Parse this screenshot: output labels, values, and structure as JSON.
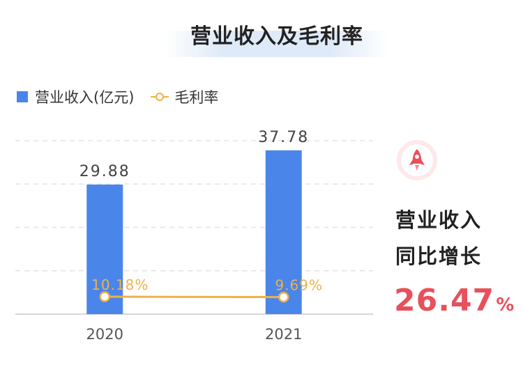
{
  "chart_data": {
    "type": "bar",
    "title": "营业收入及毛利率",
    "categories": [
      "2020",
      "2021"
    ],
    "series": [
      {
        "name": "营业收入(亿元)",
        "type": "bar",
        "values": [
          29.88,
          37.78
        ],
        "labels": [
          "29.88",
          "37.78"
        ],
        "color": "#4a86ea"
      },
      {
        "name": "毛利率",
        "type": "line",
        "values": [
          10.18,
          9.69
        ],
        "labels": [
          "10.18%",
          "9.69%"
        ],
        "color": "#f0b048"
      }
    ],
    "ylim": [
      0,
      40
    ],
    "grid": true,
    "legend_position": "top-left"
  },
  "side_panel": {
    "icon": "rocket-icon",
    "label_line1": "营业收入",
    "label_line2": "同比增长",
    "value": "26.47",
    "unit": "%",
    "accent_color": "#e8505b"
  }
}
